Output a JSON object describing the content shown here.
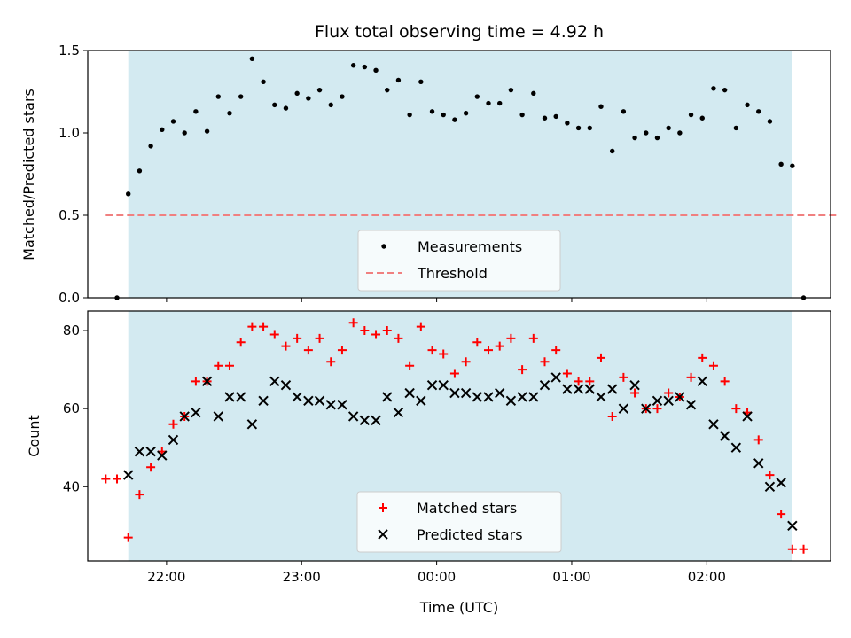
{
  "chart_data": [
    {
      "type": "scatter",
      "title": "Flux total observing time = 4.92 h",
      "xlabel": "",
      "ylabel": "Matched/Predicted stars",
      "xlim": [
        "21:25",
        "02:55"
      ],
      "ylim": [
        0,
        1.5
      ],
      "yticks": [
        0.0,
        0.5,
        1.0,
        1.5
      ],
      "ytick_labels": [
        "0.0",
        "0.5",
        "1.0",
        "1.5"
      ],
      "xticks": [
        "22:00",
        "23:00",
        "00:00",
        "01:00",
        "02:00"
      ],
      "x_tick_labels_shown": false,
      "shaded_span": {
        "from": "21:43",
        "to": "02:38",
        "color": "#d3eaf1"
      },
      "legend": {
        "location": "lower center",
        "entries": [
          "Measurements",
          "Threshold"
        ]
      },
      "series": [
        {
          "name": "Measurements",
          "marker": "dot",
          "color": "#000000",
          "x": [
            "21:38",
            "21:43",
            "21:48",
            "21:53",
            "21:58",
            "22:03",
            "22:08",
            "22:13",
            "22:18",
            "22:23",
            "22:28",
            "22:33",
            "22:38",
            "22:43",
            "22:48",
            "22:53",
            "22:58",
            "23:03",
            "23:08",
            "23:13",
            "23:18",
            "23:23",
            "23:28",
            "23:33",
            "23:38",
            "23:43",
            "23:48",
            "23:53",
            "23:58",
            "00:03",
            "00:08",
            "00:13",
            "00:18",
            "00:23",
            "00:28",
            "00:33",
            "00:38",
            "00:43",
            "00:48",
            "00:53",
            "00:58",
            "01:03",
            "01:08",
            "01:13",
            "01:18",
            "01:23",
            "01:28",
            "01:33",
            "01:38",
            "01:43",
            "01:48",
            "01:53",
            "01:58",
            "02:03",
            "02:08",
            "02:13",
            "02:18",
            "02:23",
            "02:28",
            "02:33",
            "02:38",
            "02:43"
          ],
          "y": [
            0.0,
            0.63,
            0.77,
            0.92,
            1.02,
            1.07,
            1.0,
            1.13,
            1.01,
            1.22,
            1.12,
            1.22,
            1.45,
            1.31,
            1.17,
            1.15,
            1.24,
            1.21,
            1.26,
            1.17,
            1.22,
            1.41,
            1.4,
            1.38,
            1.26,
            1.32,
            1.11,
            1.31,
            1.13,
            1.11,
            1.08,
            1.12,
            1.22,
            1.18,
            1.18,
            1.26,
            1.11,
            1.24,
            1.09,
            1.1,
            1.06,
            1.03,
            1.03,
            1.16,
            0.89,
            1.13,
            0.97,
            1.0,
            0.97,
            1.03,
            1.0,
            1.11,
            1.09,
            1.27,
            1.26,
            1.03,
            1.17,
            1.13,
            1.07,
            0.81,
            0.8,
            0.0
          ]
        },
        {
          "name": "Threshold",
          "style": "dashed",
          "color": "#f08080",
          "x": [
            "21:33",
            "02:58"
          ],
          "y": [
            0.5,
            0.5
          ]
        }
      ]
    },
    {
      "type": "scatter",
      "title": "",
      "xlabel": "Time (UTC)",
      "ylabel": "Count",
      "xlim": [
        "21:25",
        "02:55"
      ],
      "ylim": [
        21,
        85
      ],
      "yticks": [
        40,
        60,
        80
      ],
      "ytick_labels": [
        "40",
        "60",
        "80"
      ],
      "xticks": [
        "22:00",
        "23:00",
        "00:00",
        "01:00",
        "02:00"
      ],
      "x_tick_labels": [
        "22:00",
        "23:00",
        "00:00",
        "01:00",
        "02:00"
      ],
      "shaded_span": {
        "from": "21:43",
        "to": "02:38",
        "color": "#d3eaf1"
      },
      "legend": {
        "location": "lower center",
        "entries": [
          "Matched stars",
          "Predicted stars"
        ]
      },
      "series": [
        {
          "name": "Matched stars",
          "marker": "plus",
          "color": "#ff0000",
          "x": [
            "21:33",
            "21:38",
            "21:43",
            "21:48",
            "21:53",
            "21:58",
            "22:03",
            "22:08",
            "22:13",
            "22:18",
            "22:23",
            "22:28",
            "22:33",
            "22:38",
            "22:43",
            "22:48",
            "22:53",
            "22:58",
            "23:03",
            "23:08",
            "23:13",
            "23:18",
            "23:23",
            "23:28",
            "23:33",
            "23:38",
            "23:43",
            "23:48",
            "23:53",
            "23:58",
            "00:03",
            "00:08",
            "00:13",
            "00:18",
            "00:23",
            "00:28",
            "00:33",
            "00:38",
            "00:43",
            "00:48",
            "00:53",
            "00:58",
            "01:03",
            "01:08",
            "01:13",
            "01:18",
            "01:23",
            "01:28",
            "01:33",
            "01:38",
            "01:43",
            "01:48",
            "01:53",
            "01:58",
            "02:03",
            "02:08",
            "02:13",
            "02:18",
            "02:23",
            "02:28",
            "02:33",
            "02:38",
            "02:43"
          ],
          "y": [
            42,
            42,
            27,
            38,
            45,
            49,
            56,
            58,
            67,
            67,
            71,
            71,
            77,
            81,
            81,
            79,
            76,
            78,
            75,
            78,
            72,
            75,
            82,
            80,
            79,
            80,
            78,
            71,
            81,
            75,
            74,
            69,
            72,
            77,
            75,
            76,
            78,
            70,
            78,
            72,
            75,
            69,
            67,
            67,
            73,
            58,
            68,
            64,
            60,
            60,
            64,
            63,
            68,
            73,
            71,
            67,
            60,
            59,
            52,
            43,
            33,
            24,
            24
          ]
        },
        {
          "name": "Predicted stars",
          "marker": "x",
          "color": "#000000",
          "x": [
            "21:43",
            "21:48",
            "21:53",
            "21:58",
            "22:03",
            "22:08",
            "22:13",
            "22:18",
            "22:23",
            "22:28",
            "22:33",
            "22:38",
            "22:43",
            "22:48",
            "22:53",
            "22:58",
            "23:03",
            "23:08",
            "23:13",
            "23:18",
            "23:23",
            "23:28",
            "23:33",
            "23:38",
            "23:43",
            "23:48",
            "23:53",
            "23:58",
            "00:03",
            "00:08",
            "00:13",
            "00:18",
            "00:23",
            "00:28",
            "00:33",
            "00:38",
            "00:43",
            "00:48",
            "00:53",
            "00:58",
            "01:03",
            "01:08",
            "01:13",
            "01:18",
            "01:23",
            "01:28",
            "01:33",
            "01:38",
            "01:43",
            "01:48",
            "01:53",
            "01:58",
            "02:03",
            "02:08",
            "02:13",
            "02:18",
            "02:23",
            "02:28",
            "02:33",
            "02:38"
          ],
          "y": [
            43,
            49,
            49,
            48,
            52,
            58,
            59,
            67,
            58,
            63,
            63,
            56,
            62,
            67,
            66,
            63,
            62,
            62,
            61,
            61,
            58,
            57,
            57,
            63,
            59,
            64,
            62,
            66,
            66,
            64,
            64,
            63,
            63,
            64,
            62,
            63,
            63,
            66,
            68,
            65,
            65,
            65,
            63,
            65,
            60,
            66,
            60,
            62,
            62,
            63,
            61,
            67,
            56,
            53,
            50,
            58,
            46,
            40,
            41,
            30
          ]
        }
      ]
    }
  ]
}
